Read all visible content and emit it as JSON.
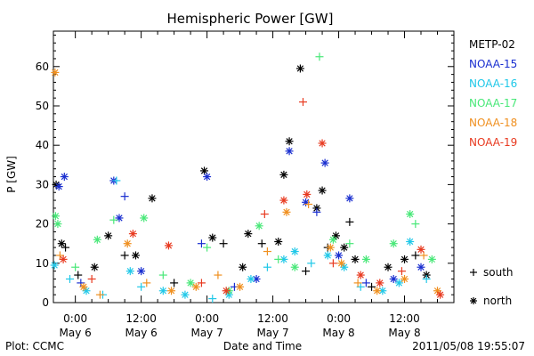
{
  "chart_data": {
    "type": "scatter",
    "title": "Hemispheric Power [GW]",
    "xlabel": "Date and Time",
    "ylabel": "P [GW]",
    "ylim": [
      0,
      69
    ],
    "xlim_hours": [
      -4,
      69
    ],
    "grid": false,
    "legend_position": "right",
    "yticks": [
      0,
      10,
      20,
      30,
      40,
      50,
      60
    ],
    "xticks": [
      {
        "hour": 0,
        "time": "0:00",
        "date": "May 6"
      },
      {
        "hour": 12,
        "time": "12:00",
        "date": "May 6"
      },
      {
        "hour": 24,
        "time": "0:00",
        "date": "May 7"
      },
      {
        "hour": 36,
        "time": "12:00",
        "date": "May 7"
      },
      {
        "hour": 48,
        "time": "0:00",
        "date": "May 8"
      },
      {
        "hour": 60,
        "time": "12:00",
        "date": "May 8"
      }
    ],
    "marker_legend": [
      {
        "symbol": "+",
        "label": "south"
      },
      {
        "symbol": "*",
        "label": "north"
      }
    ],
    "series": [
      {
        "name": "METP-02",
        "color": "#000000",
        "points": [
          {
            "x": -3.5,
            "y": 30,
            "hemi": "north"
          },
          {
            "x": -2.5,
            "y": 15,
            "hemi": "north"
          },
          {
            "x": -1.8,
            "y": 14,
            "hemi": "south"
          },
          {
            "x": 0.5,
            "y": 7,
            "hemi": "south"
          },
          {
            "x": 3.5,
            "y": 9,
            "hemi": "north"
          },
          {
            "x": 6,
            "y": 17,
            "hemi": "north"
          },
          {
            "x": 9,
            "y": 12,
            "hemi": "south"
          },
          {
            "x": 11,
            "y": 12,
            "hemi": "north"
          },
          {
            "x": 14,
            "y": 26.5,
            "hemi": "north"
          },
          {
            "x": 18,
            "y": 5,
            "hemi": "south"
          },
          {
            "x": 23.5,
            "y": 33.5,
            "hemi": "north"
          },
          {
            "x": 25,
            "y": 16.5,
            "hemi": "north"
          },
          {
            "x": 27,
            "y": 15,
            "hemi": "south"
          },
          {
            "x": 30.5,
            "y": 9,
            "hemi": "north"
          },
          {
            "x": 31.5,
            "y": 17.5,
            "hemi": "north"
          },
          {
            "x": 34,
            "y": 15,
            "hemi": "south"
          },
          {
            "x": 37,
            "y": 15.5,
            "hemi": "north"
          },
          {
            "x": 38,
            "y": 32.5,
            "hemi": "north"
          },
          {
            "x": 39,
            "y": 41,
            "hemi": "north"
          },
          {
            "x": 41,
            "y": 59.5,
            "hemi": "north"
          },
          {
            "x": 42,
            "y": 8,
            "hemi": "south"
          },
          {
            "x": 44,
            "y": 24,
            "hemi": "north"
          },
          {
            "x": 45,
            "y": 28.5,
            "hemi": "north"
          },
          {
            "x": 46,
            "y": 14,
            "hemi": "south"
          },
          {
            "x": 47.5,
            "y": 17,
            "hemi": "north"
          },
          {
            "x": 49,
            "y": 14,
            "hemi": "north"
          },
          {
            "x": 50,
            "y": 20.5,
            "hemi": "south"
          },
          {
            "x": 51,
            "y": 11,
            "hemi": "north"
          },
          {
            "x": 54,
            "y": 4,
            "hemi": "south"
          },
          {
            "x": 57,
            "y": 9,
            "hemi": "north"
          },
          {
            "x": 60,
            "y": 11,
            "hemi": "north"
          },
          {
            "x": 62,
            "y": 12,
            "hemi": "south"
          },
          {
            "x": 64,
            "y": 7,
            "hemi": "north"
          }
        ]
      },
      {
        "name": "NOAA-15",
        "color": "#1a2fd0",
        "points": [
          {
            "x": -3,
            "y": 29.5,
            "hemi": "north"
          },
          {
            "x": -2,
            "y": 32,
            "hemi": "north"
          },
          {
            "x": 1,
            "y": 5,
            "hemi": "south"
          },
          {
            "x": 7,
            "y": 31,
            "hemi": "north"
          },
          {
            "x": 8,
            "y": 21.5,
            "hemi": "north"
          },
          {
            "x": 9,
            "y": 27,
            "hemi": "south"
          },
          {
            "x": 12,
            "y": 8,
            "hemi": "north"
          },
          {
            "x": 23,
            "y": 15,
            "hemi": "south"
          },
          {
            "x": 24,
            "y": 32,
            "hemi": "north"
          },
          {
            "x": 29,
            "y": 4,
            "hemi": "south"
          },
          {
            "x": 33,
            "y": 6,
            "hemi": "north"
          },
          {
            "x": 39,
            "y": 38.5,
            "hemi": "north"
          },
          {
            "x": 42,
            "y": 25.5,
            "hemi": "north"
          },
          {
            "x": 44,
            "y": 23,
            "hemi": "south"
          },
          {
            "x": 45.5,
            "y": 35.5,
            "hemi": "north"
          },
          {
            "x": 48,
            "y": 12,
            "hemi": "north"
          },
          {
            "x": 50,
            "y": 26.5,
            "hemi": "north"
          },
          {
            "x": 53,
            "y": 5,
            "hemi": "south"
          },
          {
            "x": 58,
            "y": 6,
            "hemi": "north"
          },
          {
            "x": 63,
            "y": 9,
            "hemi": "north"
          }
        ]
      },
      {
        "name": "NOAA-16",
        "color": "#20c8e8",
        "points": [
          {
            "x": -3.8,
            "y": 9.5,
            "hemi": "north"
          },
          {
            "x": -1,
            "y": 6,
            "hemi": "south"
          },
          {
            "x": 2,
            "y": 3,
            "hemi": "north"
          },
          {
            "x": 5,
            "y": 2,
            "hemi": "south"
          },
          {
            "x": 7.5,
            "y": 31,
            "hemi": "south"
          },
          {
            "x": 10,
            "y": 8,
            "hemi": "north"
          },
          {
            "x": 12,
            "y": 4,
            "hemi": "south"
          },
          {
            "x": 16,
            "y": 3,
            "hemi": "north"
          },
          {
            "x": 20,
            "y": 2,
            "hemi": "north"
          },
          {
            "x": 25,
            "y": 1,
            "hemi": "south"
          },
          {
            "x": 28,
            "y": 2,
            "hemi": "north"
          },
          {
            "x": 32,
            "y": 6,
            "hemi": "north"
          },
          {
            "x": 35,
            "y": 9,
            "hemi": "south"
          },
          {
            "x": 38,
            "y": 11,
            "hemi": "north"
          },
          {
            "x": 40,
            "y": 13,
            "hemi": "north"
          },
          {
            "x": 43,
            "y": 10,
            "hemi": "south"
          },
          {
            "x": 46,
            "y": 12,
            "hemi": "north"
          },
          {
            "x": 49,
            "y": 9,
            "hemi": "north"
          },
          {
            "x": 52,
            "y": 4,
            "hemi": "south"
          },
          {
            "x": 56,
            "y": 3,
            "hemi": "north"
          },
          {
            "x": 59,
            "y": 5,
            "hemi": "north"
          },
          {
            "x": 61,
            "y": 15.5,
            "hemi": "north"
          },
          {
            "x": 64,
            "y": 6,
            "hemi": "south"
          }
        ]
      },
      {
        "name": "NOAA-17",
        "color": "#48e878",
        "points": [
          {
            "x": -3.6,
            "y": 22,
            "hemi": "north"
          },
          {
            "x": -3.2,
            "y": 20,
            "hemi": "north"
          },
          {
            "x": 0,
            "y": 9,
            "hemi": "south"
          },
          {
            "x": 4,
            "y": 16,
            "hemi": "north"
          },
          {
            "x": 7,
            "y": 21,
            "hemi": "south"
          },
          {
            "x": 12.5,
            "y": 21.5,
            "hemi": "north"
          },
          {
            "x": 16,
            "y": 7,
            "hemi": "south"
          },
          {
            "x": 21,
            "y": 5,
            "hemi": "north"
          },
          {
            "x": 24,
            "y": 14,
            "hemi": "south"
          },
          {
            "x": 28,
            "y": 3,
            "hemi": "north"
          },
          {
            "x": 33.5,
            "y": 19.5,
            "hemi": "north"
          },
          {
            "x": 37,
            "y": 11,
            "hemi": "south"
          },
          {
            "x": 40,
            "y": 9,
            "hemi": "north"
          },
          {
            "x": 44.5,
            "y": 62.5,
            "hemi": "south"
          },
          {
            "x": 47,
            "y": 16,
            "hemi": "north"
          },
          {
            "x": 50,
            "y": 15,
            "hemi": "south"
          },
          {
            "x": 53,
            "y": 11,
            "hemi": "north"
          },
          {
            "x": 58,
            "y": 15,
            "hemi": "north"
          },
          {
            "x": 61,
            "y": 22.5,
            "hemi": "north"
          },
          {
            "x": 62,
            "y": 20,
            "hemi": "south"
          },
          {
            "x": 65,
            "y": 11,
            "hemi": "north"
          }
        ]
      },
      {
        "name": "NOAA-18",
        "color": "#f09020",
        "points": [
          {
            "x": -3.7,
            "y": 58.5,
            "hemi": "north"
          },
          {
            "x": -2.8,
            "y": 12,
            "hemi": "south"
          },
          {
            "x": 1.5,
            "y": 4,
            "hemi": "north"
          },
          {
            "x": 4.5,
            "y": 2,
            "hemi": "south"
          },
          {
            "x": 9.5,
            "y": 15,
            "hemi": "north"
          },
          {
            "x": 13,
            "y": 5,
            "hemi": "south"
          },
          {
            "x": 17.5,
            "y": 3,
            "hemi": "north"
          },
          {
            "x": 22,
            "y": 4,
            "hemi": "north"
          },
          {
            "x": 26,
            "y": 7,
            "hemi": "south"
          },
          {
            "x": 30,
            "y": 4,
            "hemi": "north"
          },
          {
            "x": 35,
            "y": 13,
            "hemi": "south"
          },
          {
            "x": 38.5,
            "y": 23,
            "hemi": "north"
          },
          {
            "x": 42.5,
            "y": 25,
            "hemi": "south"
          },
          {
            "x": 46.5,
            "y": 14,
            "hemi": "north"
          },
          {
            "x": 48.5,
            "y": 10,
            "hemi": "north"
          },
          {
            "x": 51.5,
            "y": 5,
            "hemi": "south"
          },
          {
            "x": 55,
            "y": 3,
            "hemi": "north"
          },
          {
            "x": 60,
            "y": 6,
            "hemi": "north"
          },
          {
            "x": 63.5,
            "y": 12,
            "hemi": "south"
          },
          {
            "x": 66,
            "y": 3,
            "hemi": "north"
          }
        ]
      },
      {
        "name": "NOAA-19",
        "color": "#e83a20",
        "points": [
          {
            "x": -2.2,
            "y": 11,
            "hemi": "north"
          },
          {
            "x": 3,
            "y": 6,
            "hemi": "south"
          },
          {
            "x": 10.5,
            "y": 17.5,
            "hemi": "north"
          },
          {
            "x": 17,
            "y": 14.5,
            "hemi": "north"
          },
          {
            "x": 23,
            "y": 5,
            "hemi": "south"
          },
          {
            "x": 27.5,
            "y": 3,
            "hemi": "north"
          },
          {
            "x": 34.5,
            "y": 22.5,
            "hemi": "south"
          },
          {
            "x": 38,
            "y": 26,
            "hemi": "north"
          },
          {
            "x": 41.5,
            "y": 51,
            "hemi": "south"
          },
          {
            "x": 42.2,
            "y": 27.5,
            "hemi": "north"
          },
          {
            "x": 45,
            "y": 40.5,
            "hemi": "north"
          },
          {
            "x": 47,
            "y": 10,
            "hemi": "south"
          },
          {
            "x": 52,
            "y": 7,
            "hemi": "north"
          },
          {
            "x": 55.5,
            "y": 5,
            "hemi": "north"
          },
          {
            "x": 59.5,
            "y": 8,
            "hemi": "south"
          },
          {
            "x": 63,
            "y": 13.5,
            "hemi": "north"
          },
          {
            "x": 66.5,
            "y": 2,
            "hemi": "north"
          }
        ]
      }
    ]
  },
  "footer": {
    "plot_credit": "Plot: CCMC",
    "timestamp": "2011/05/08 19:55:07"
  }
}
